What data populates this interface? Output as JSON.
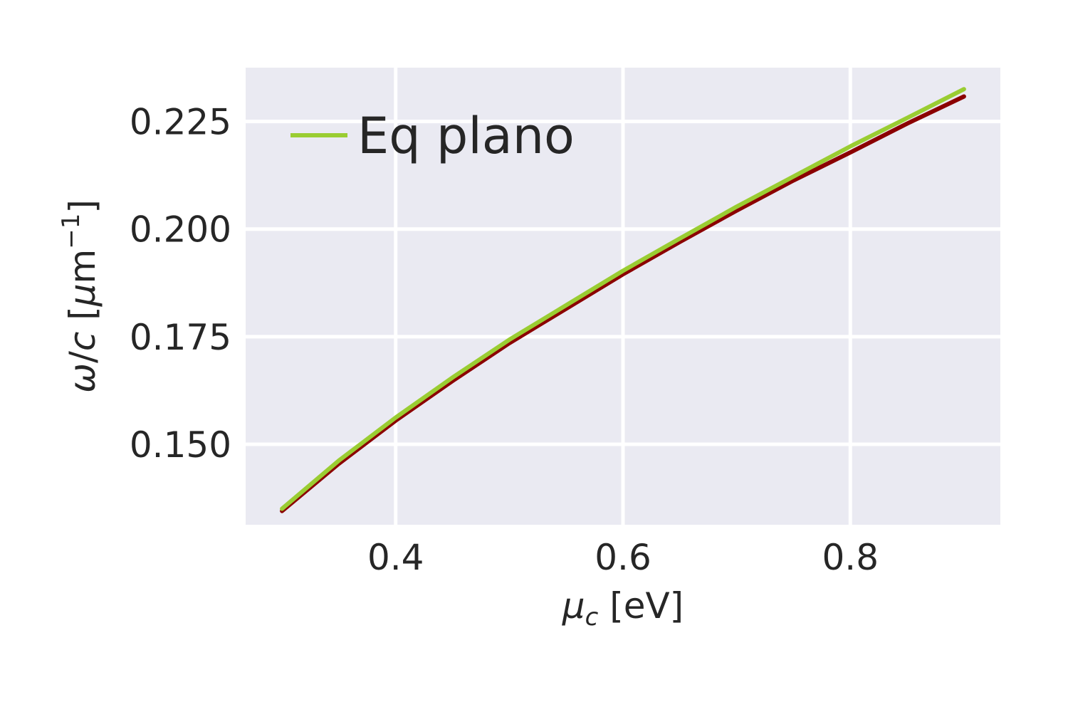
{
  "chart_data": {
    "type": "line",
    "title": "",
    "xlabel": "μc [eV]",
    "ylabel": "ω/c [μm−1]",
    "xlim": [
      0.268,
      0.932
    ],
    "ylim": [
      0.1313,
      0.2375
    ],
    "xticks": [
      0.4,
      0.6,
      0.8
    ],
    "xtick_labels": [
      "0.4",
      "0.6",
      "0.8"
    ],
    "yticks": [
      0.15,
      0.175,
      0.2,
      0.225
    ],
    "ytick_labels": [
      "0.150",
      "0.175",
      "0.200",
      "0.225"
    ],
    "grid": true,
    "legend_position": "top-left",
    "background": "#EAEAF2",
    "series": [
      {
        "name": "",
        "color": "#8B0000",
        "x": [
          0.3,
          0.35,
          0.4,
          0.45,
          0.5,
          0.55,
          0.6,
          0.65,
          0.7,
          0.75,
          0.8,
          0.85,
          0.9
        ],
        "y": [
          0.1345,
          0.1455,
          0.1555,
          0.1647,
          0.1735,
          0.1815,
          0.1895,
          0.197,
          0.2043,
          0.2113,
          0.2178,
          0.2245,
          0.2308
        ]
      },
      {
        "name": "Eq plano",
        "color": "#9ACD32",
        "x": [
          0.3,
          0.35,
          0.4,
          0.45,
          0.5,
          0.55,
          0.6,
          0.65,
          0.7,
          0.75,
          0.8,
          0.85,
          0.9
        ],
        "y": [
          0.135,
          0.1462,
          0.1562,
          0.1655,
          0.1743,
          0.1823,
          0.1903,
          0.1978,
          0.2052,
          0.2122,
          0.2192,
          0.2258,
          0.2325
        ]
      }
    ]
  }
}
